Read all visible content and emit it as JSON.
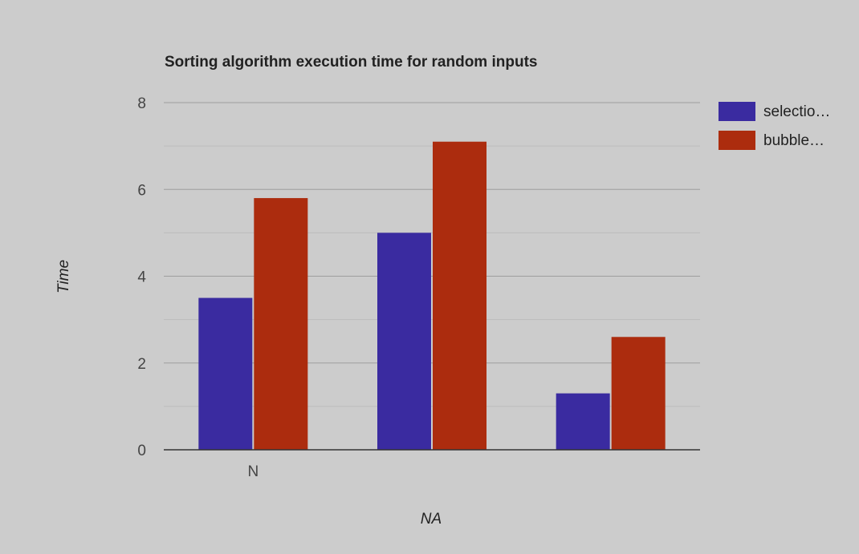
{
  "chart_data": {
    "type": "bar",
    "title": "Sorting algorithm execution time for random inputs",
    "xlabel": "NA",
    "ylabel": "Time",
    "categories": [
      "N",
      "",
      ""
    ],
    "series": [
      {
        "name": "selectio…",
        "values": [
          3.5,
          5.0,
          1.3
        ],
        "color": "#3a2ba0"
      },
      {
        "name": "bubble…",
        "values": [
          5.8,
          7.1,
          2.6
        ],
        "color": "#ac2c0e"
      }
    ],
    "ylim": [
      0,
      8
    ],
    "yticks": [
      0,
      2,
      4,
      6,
      8
    ],
    "grid": true,
    "legend": "right"
  }
}
